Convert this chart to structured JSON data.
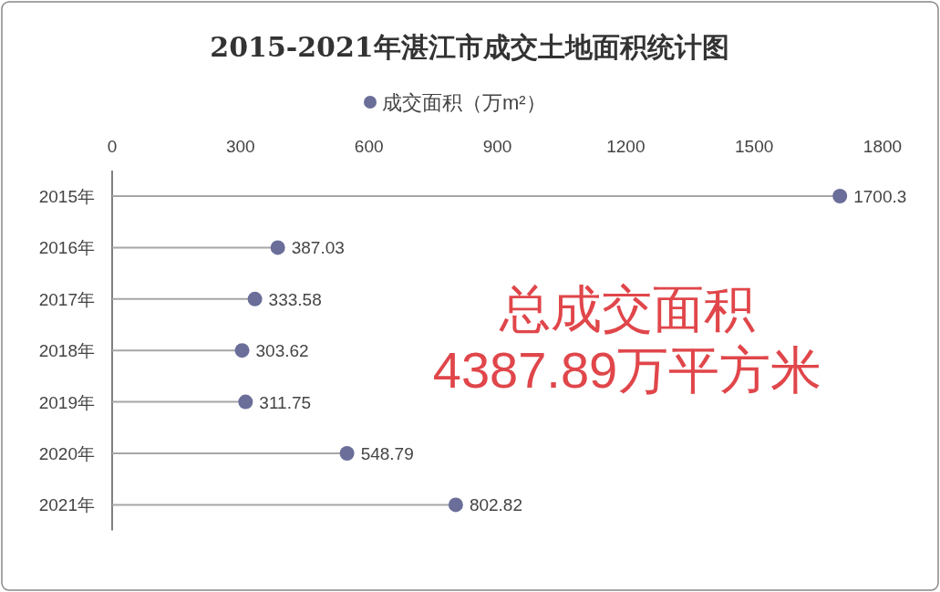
{
  "chart_data": {
    "type": "lollipop",
    "orientation": "horizontal",
    "title": "2015-2021年湛江市成交土地面积统计图",
    "categories": [
      "2015年",
      "2016年",
      "2017年",
      "2018年",
      "2019年",
      "2020年",
      "2021年"
    ],
    "series": [
      {
        "name": "成交面积（万m²）",
        "color": "#6a6e99",
        "values": [
          1700.3,
          387.03,
          333.58,
          303.62,
          311.75,
          548.79,
          802.82
        ]
      }
    ],
    "xlim": [
      0,
      1800
    ],
    "xticks": [
      0,
      300,
      600,
      900,
      1200,
      1500,
      1800
    ],
    "data_labels": true,
    "legend": "top",
    "marker": "circle",
    "annotations": [
      "总成交面积",
      "4387.89万平方米"
    ]
  }
}
